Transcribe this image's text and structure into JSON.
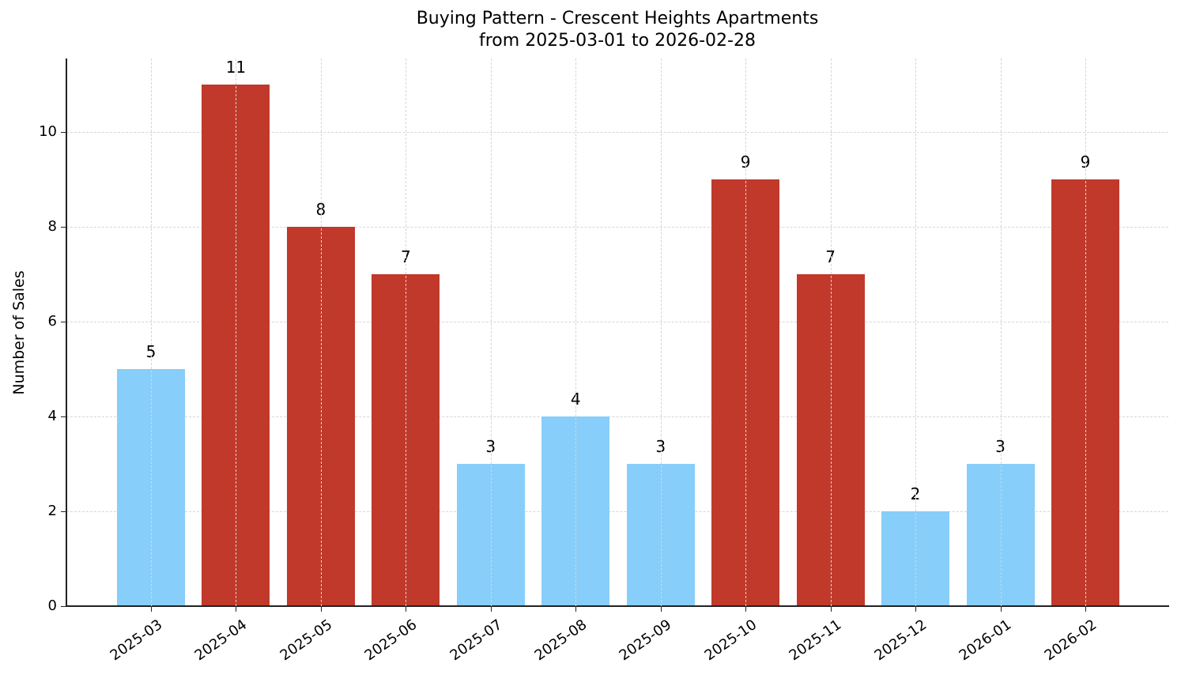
{
  "chart_data": {
    "type": "bar",
    "title": "Buying Pattern - Crescent Heights Apartments",
    "subtitle": "from 2025-03-01 to 2026-02-28",
    "xlabel": "",
    "ylabel": "Number of Sales",
    "categories": [
      "2025-03",
      "2025-04",
      "2025-05",
      "2025-06",
      "2025-07",
      "2025-08",
      "2025-09",
      "2025-10",
      "2025-11",
      "2025-12",
      "2026-01",
      "2026-02"
    ],
    "values": [
      5,
      11,
      8,
      7,
      3,
      4,
      3,
      9,
      7,
      2,
      3,
      9
    ],
    "bar_colors": [
      "#87CEFA",
      "#C0392B",
      "#C0392B",
      "#C0392B",
      "#87CEFA",
      "#87CEFA",
      "#87CEFA",
      "#C0392B",
      "#C0392B",
      "#87CEFA",
      "#87CEFA",
      "#C0392B"
    ],
    "color_legend_note": "red bars = high sales months, blue bars = low sales months (no legend shown)",
    "data_labels": [
      "5",
      "11",
      "8",
      "7",
      "3",
      "4",
      "3",
      "9",
      "7",
      "2",
      "3",
      "9"
    ],
    "yticks": [
      "0",
      "2",
      "4",
      "6",
      "8",
      "10"
    ],
    "ylim": [
      0,
      11.55
    ],
    "grid": true,
    "legend": null
  },
  "colors": {
    "high": "#C0392B",
    "low": "#87CEFA",
    "axis": "#222222",
    "grid": "#d6d6d6"
  }
}
